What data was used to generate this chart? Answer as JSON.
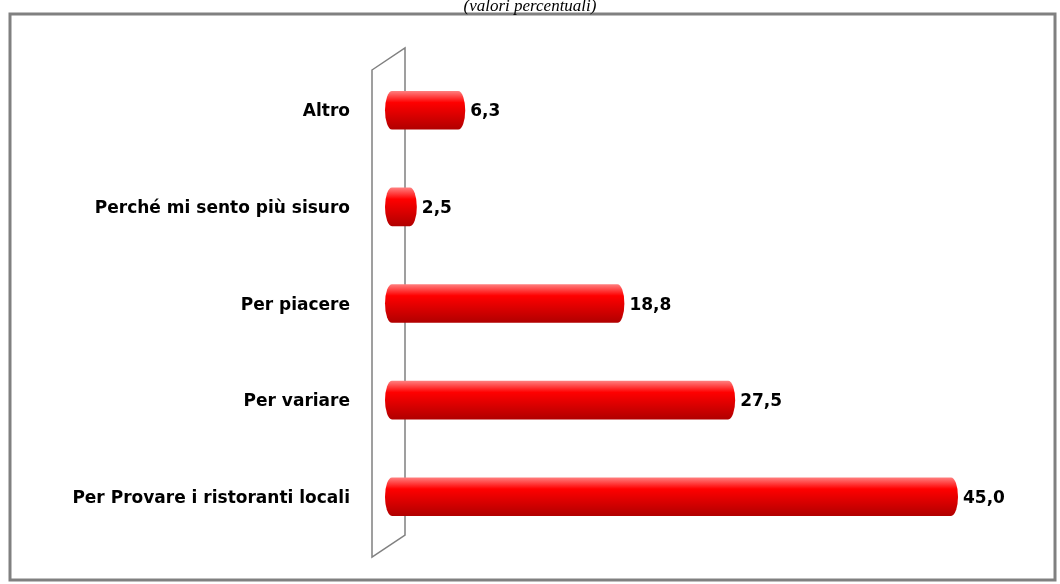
{
  "chart_data": {
    "type": "bar",
    "orientation": "horizontal",
    "subtitle": "(valori percentuali)",
    "categories": [
      "Altro",
      "Perché mi sento più sisuro",
      "Per piacere",
      "Per variare",
      "Per Provare i ristoranti locali"
    ],
    "values": [
      6.3,
      2.5,
      18.8,
      27.5,
      45.0
    ],
    "value_labels": [
      "6,3",
      "2,5",
      "18,8",
      "27,5",
      "45,0"
    ],
    "color": "#ff0000"
  }
}
